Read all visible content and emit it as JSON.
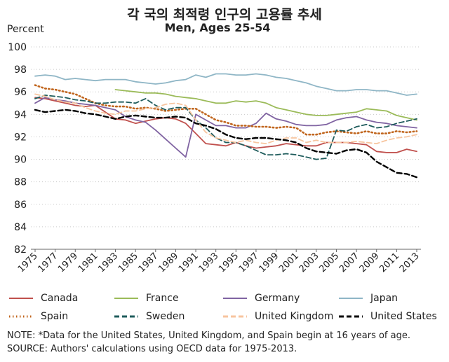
{
  "title": "각 국의 최적령 인구의 고용률 추세",
  "subtitle": "Men, Ages 25-54",
  "y_unit_label": "Percent",
  "notes": [
    "NOTE: *Data for the United States, United Kingdom, and Spain begin at 16 years of age.",
    "SOURCE: Authors' calculations using OECD data for 1975-2013."
  ],
  "chart_data": {
    "type": "line",
    "title": "각 국의 최적령 인구의 고용률 추세",
    "subtitle": "Men, Ages 25-54",
    "ylabel": "Percent",
    "xlabel": "",
    "ylim": [
      82,
      100
    ],
    "yticks": [
      82,
      84,
      86,
      88,
      90,
      92,
      94,
      96,
      98,
      100
    ],
    "xlim": [
      1975,
      2013
    ],
    "xticks": [
      1975,
      1977,
      1979,
      1981,
      1983,
      1985,
      1987,
      1989,
      1991,
      1993,
      1995,
      1997,
      1999,
      2001,
      2003,
      2005,
      2007,
      2009,
      2011,
      2013
    ],
    "grid": "horizontal dotted",
    "legend_position": "bottom",
    "x": [
      1975,
      1976,
      1977,
      1978,
      1979,
      1980,
      1981,
      1982,
      1983,
      1984,
      1985,
      1986,
      1987,
      1988,
      1989,
      1990,
      1991,
      1992,
      1993,
      1994,
      1995,
      1996,
      1997,
      1998,
      1999,
      2000,
      2001,
      2002,
      2003,
      2004,
      2005,
      2006,
      2007,
      2008,
      2009,
      2010,
      2011,
      2012,
      2013
    ],
    "series": [
      {
        "name": "Canada",
        "color": "#c0504d",
        "dash": "solid",
        "values": [
          95.5,
          95.4,
          95.2,
          95.0,
          94.8,
          94.7,
          94.8,
          94.2,
          93.6,
          93.5,
          93.2,
          93.4,
          93.6,
          93.7,
          93.6,
          93.2,
          92.3,
          91.4,
          91.3,
          91.2,
          91.5,
          91.2,
          91.0,
          91.1,
          91.2,
          91.4,
          91.3,
          91.2,
          91.2,
          91.5,
          91.5,
          91.5,
          91.4,
          91.3,
          90.7,
          90.6,
          90.6,
          90.9,
          90.7
        ]
      },
      {
        "name": "France",
        "color": "#9bbb59",
        "dash": "solid",
        "values": [
          null,
          null,
          null,
          null,
          null,
          null,
          null,
          null,
          96.2,
          96.1,
          96.0,
          95.9,
          95.9,
          95.8,
          95.6,
          95.5,
          95.4,
          95.2,
          95.0,
          95.0,
          95.2,
          95.1,
          95.2,
          95.0,
          94.6,
          94.4,
          94.2,
          94.0,
          93.9,
          93.9,
          94.0,
          94.1,
          94.2,
          94.5,
          94.4,
          94.3,
          93.9,
          93.7,
          93.5
        ]
      },
      {
        "name": "Germany",
        "color": "#8064a2",
        "dash": "solid",
        "values": [
          95.0,
          95.5,
          95.3,
          95.2,
          95.0,
          94.9,
          94.8,
          94.6,
          94.4,
          93.8,
          93.5,
          93.3,
          92.6,
          91.8,
          91.0,
          90.2,
          94.0,
          93.5,
          93.0,
          93.0,
          92.8,
          92.8,
          93.2,
          94.1,
          93.6,
          93.4,
          93.1,
          93.0,
          93.0,
          93.1,
          93.5,
          93.7,
          93.8,
          93.5,
          93.3,
          93.2,
          93.0,
          92.9,
          92.8
        ]
      },
      {
        "name": "Japan",
        "color": "#8fb6c6",
        "dash": "solid",
        "values": [
          97.4,
          97.5,
          97.4,
          97.1,
          97.2,
          97.1,
          97.0,
          97.1,
          97.1,
          97.1,
          96.9,
          96.8,
          96.7,
          96.8,
          97.0,
          97.1,
          97.5,
          97.3,
          97.6,
          97.6,
          97.5,
          97.5,
          97.6,
          97.5,
          97.3,
          97.2,
          97.0,
          96.8,
          96.5,
          96.3,
          96.1,
          96.1,
          96.2,
          96.2,
          96.1,
          96.1,
          95.9,
          95.7,
          95.8
        ]
      },
      {
        "name": "Spain",
        "color": "#c0651d",
        "dash": "dotted",
        "values": [
          96.6,
          96.3,
          96.2,
          96.0,
          95.8,
          95.4,
          95.0,
          94.8,
          94.7,
          94.7,
          94.5,
          94.6,
          94.5,
          94.3,
          94.4,
          94.5,
          94.5,
          94.0,
          93.5,
          93.3,
          93.0,
          93.0,
          92.9,
          92.9,
          92.8,
          92.9,
          92.8,
          92.2,
          92.2,
          92.4,
          92.5,
          92.4,
          92.3,
          92.5,
          92.3,
          92.3,
          92.5,
          92.4,
          92.5
        ]
      },
      {
        "name": "Sweden",
        "color": "#1f5c5c",
        "dash": "dashed",
        "values": [
          95.4,
          95.7,
          95.6,
          95.5,
          95.3,
          95.2,
          95.0,
          95.0,
          95.1,
          95.1,
          95.0,
          95.4,
          94.8,
          94.4,
          94.6,
          94.6,
          93.5,
          92.8,
          91.9,
          91.5,
          91.5,
          91.2,
          90.8,
          90.4,
          90.4,
          90.5,
          90.4,
          90.2,
          90.0,
          90.1,
          92.6,
          92.5,
          92.9,
          93.1,
          92.8,
          92.9,
          93.2,
          93.4,
          93.6
        ]
      },
      {
        "name": "United Kingdom",
        "color": "#f7c59f",
        "dash": "dashed",
        "values": [
          95.8,
          95.6,
          95.3,
          95.1,
          95.0,
          94.6,
          94.3,
          94.1,
          94.0,
          94.3,
          94.3,
          94.5,
          94.6,
          94.9,
          95.0,
          94.8,
          93.5,
          92.4,
          91.9,
          91.7,
          91.5,
          91.7,
          91.5,
          91.4,
          91.7,
          91.9,
          91.9,
          91.5,
          91.7,
          91.5,
          91.5,
          91.5,
          91.6,
          91.5,
          91.4,
          91.7,
          91.9,
          92.0,
          92.2
        ]
      },
      {
        "name": "United States",
        "color": "#000000",
        "dash": "dashed",
        "values": [
          94.4,
          94.2,
          94.3,
          94.4,
          94.3,
          94.1,
          94.0,
          93.8,
          93.6,
          93.8,
          93.9,
          93.8,
          93.7,
          93.7,
          93.8,
          93.7,
          93.2,
          93.0,
          92.7,
          92.2,
          91.9,
          91.8,
          91.9,
          91.9,
          91.8,
          91.7,
          91.5,
          91.0,
          90.7,
          90.6,
          90.5,
          90.8,
          90.9,
          90.6,
          89.8,
          89.3,
          88.8,
          88.7,
          88.4
        ]
      }
    ]
  }
}
